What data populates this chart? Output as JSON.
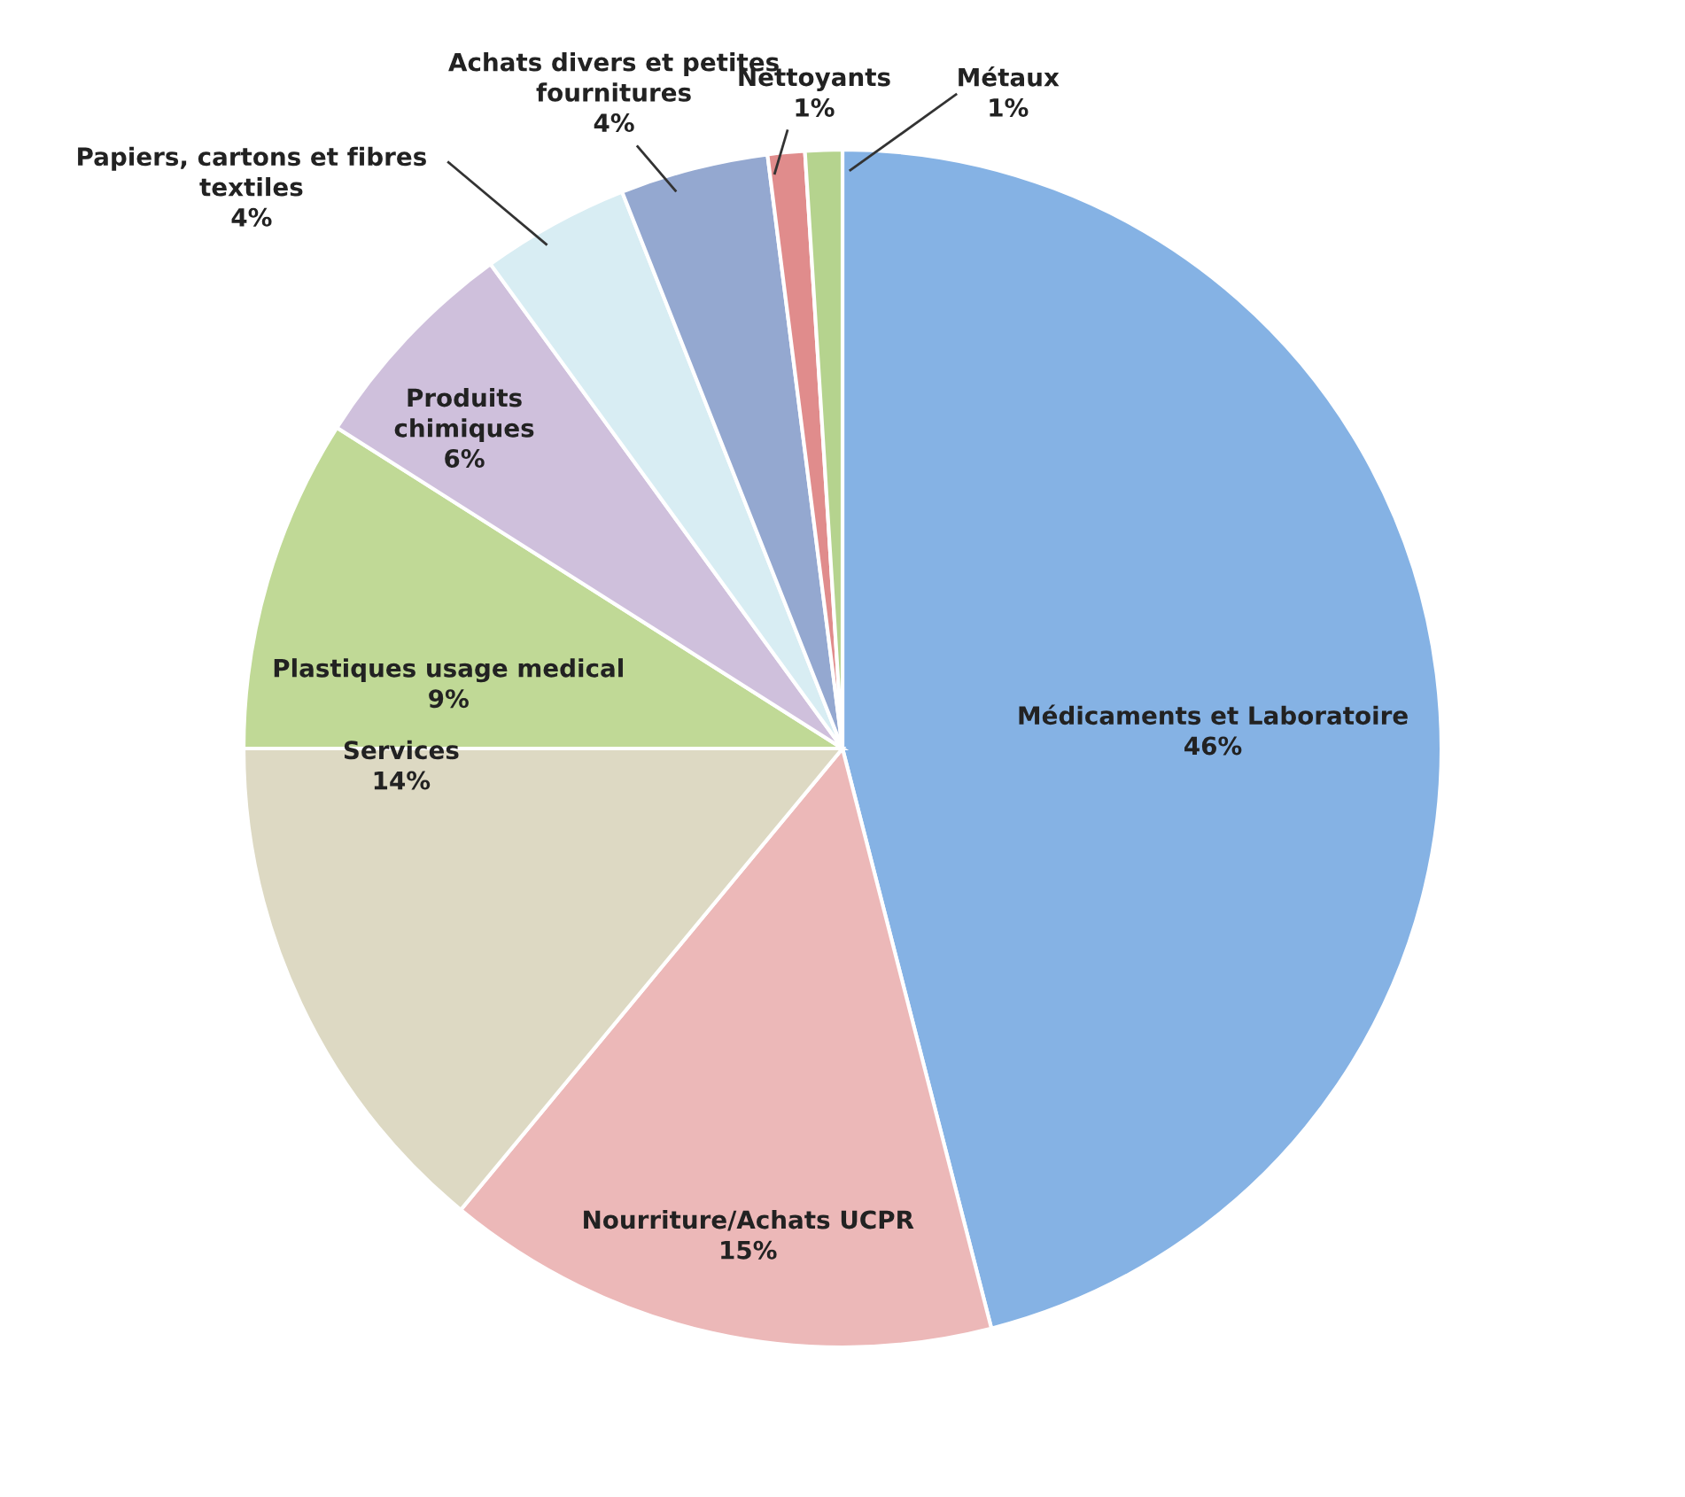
{
  "chart_data": {
    "type": "pie",
    "categories": [
      "Médicaments et Laboratoire",
      "Nourriture/Achats UCPR",
      "Services",
      "Plastiques usage medical",
      "Produits\nchimiques",
      "Papiers, cartons et fibres\ntextiles",
      "Achats divers et petites\nfournitures",
      "Nettoyants",
      "Métaux"
    ],
    "values": [
      46,
      15,
      14,
      9,
      6,
      4,
      4,
      1,
      1
    ],
    "value_labels": [
      "46%",
      "15%",
      "14%",
      "9%",
      "6%",
      "4%",
      "4%",
      "1%",
      "1%"
    ],
    "colors": [
      "#85b2e4",
      "#ecb8b8",
      "#ddd9c3",
      "#c0d996",
      "#cfc0dc",
      "#d8edf3",
      "#94a8d0",
      "#e08c8c",
      "#b5d38e"
    ],
    "legend": false
  }
}
